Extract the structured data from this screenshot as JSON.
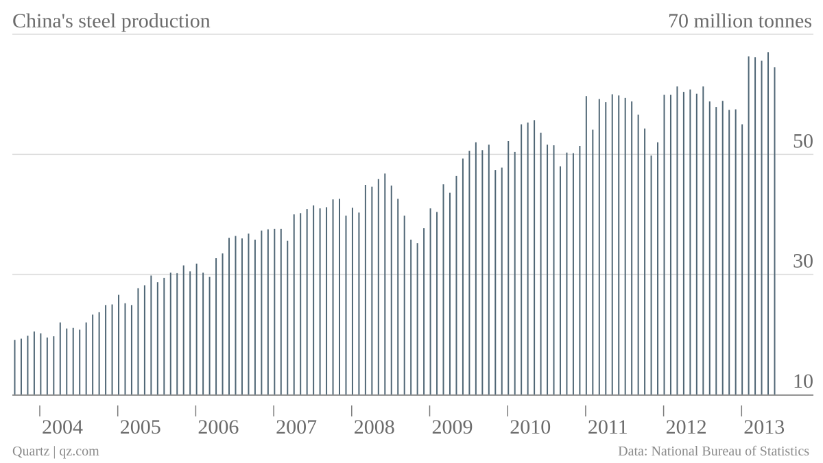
{
  "title": "China's steel production",
  "footer": {
    "source_left": "Quartz | qz.com",
    "source_right": "Data: National Bureau of Statistics"
  },
  "colors": {
    "bar": "#4f6675",
    "grid": "#dcdcdc",
    "axis": "#7a7a7a",
    "text": "#6b6b6b"
  },
  "chart_data": {
    "type": "bar",
    "title": "China's steel production",
    "ylabel": "70 million tonnes",
    "ylim": [
      10,
      70
    ],
    "yticks": [
      10,
      30,
      50
    ],
    "grid": true,
    "x_labels": [
      "2004",
      "2005",
      "2006",
      "2007",
      "2008",
      "2009",
      "2010",
      "2011",
      "2012",
      "2013"
    ],
    "start_month": "2003-11",
    "values": [
      19.1,
      19.3,
      19.8,
      20.5,
      20.2,
      19.5,
      19.7,
      22.0,
      21.0,
      21.1,
      20.8,
      22.0,
      23.3,
      23.7,
      24.9,
      25.0,
      26.6,
      25.2,
      24.9,
      27.7,
      28.2,
      29.8,
      28.7,
      29.4,
      30.3,
      30.2,
      31.5,
      30.5,
      31.8,
      30.3,
      29.6,
      32.7,
      33.5,
      36.1,
      36.4,
      36.0,
      36.8,
      35.8,
      37.3,
      37.5,
      37.6,
      37.6,
      35.6,
      40.0,
      40.2,
      40.9,
      41.5,
      41.0,
      41.2,
      42.5,
      42.6,
      39.8,
      41.1,
      40.3,
      44.9,
      44.6,
      45.9,
      46.8,
      44.8,
      42.6,
      39.8,
      35.8,
      35.2,
      37.7,
      41.0,
      40.4,
      45.0,
      43.6,
      46.4,
      49.3,
      50.6,
      52.0,
      50.7,
      51.6,
      47.4,
      47.8,
      52.2,
      50.4,
      55.0,
      55.3,
      55.7,
      53.6,
      51.6,
      51.5,
      48.0,
      50.3,
      50.2,
      51.4,
      59.7,
      54.1,
      59.2,
      58.7,
      60.0,
      59.8,
      59.4,
      58.8,
      56.6,
      54.3,
      49.8,
      52.0,
      59.9,
      59.9,
      61.3,
      60.4,
      60.8,
      60.1,
      61.3,
      58.8,
      57.9,
      58.9,
      57.4,
      57.5,
      55.0,
      66.3,
      66.2,
      65.6,
      67.0,
      64.5
    ]
  }
}
